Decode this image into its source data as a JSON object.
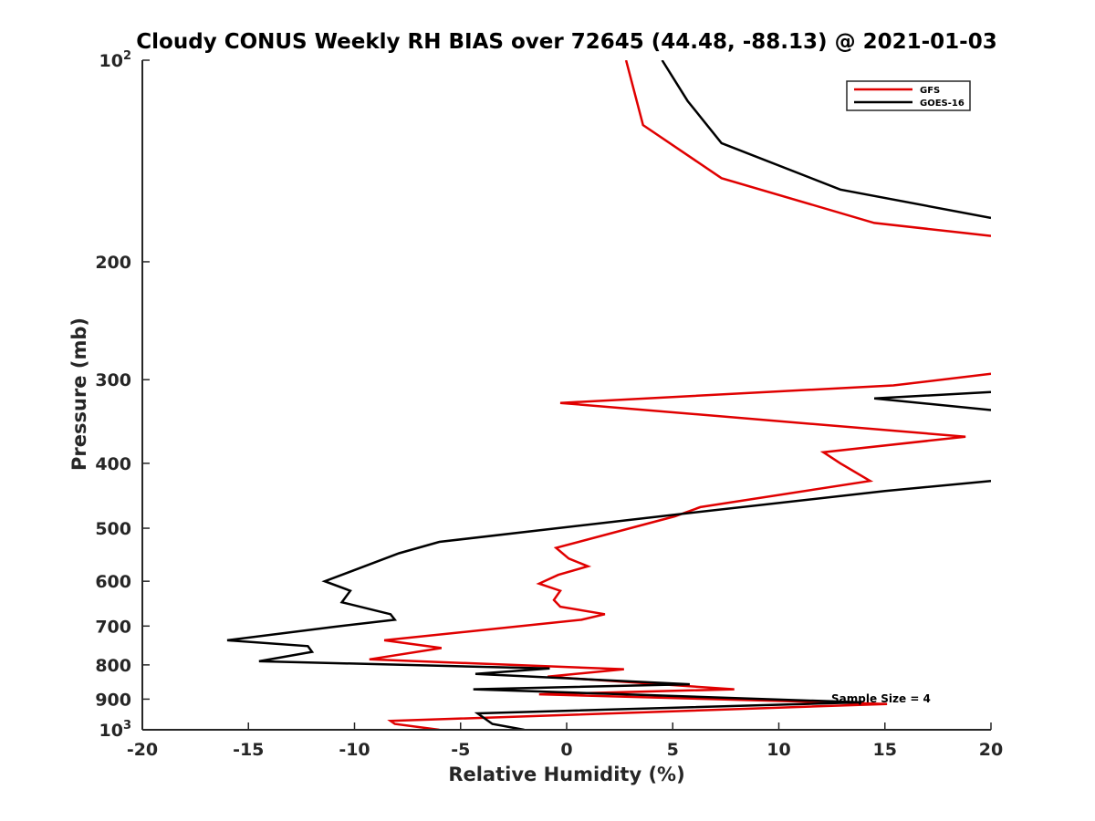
{
  "chart_data": {
    "type": "line",
    "title": "Cloudy CONUS Weekly RH BIAS over 72645 (44.48, -88.13) @ 2021-01-03",
    "xlabel": "Relative Humidity (%)",
    "ylabel": "Pressure (mb)",
    "xlim": [
      -20,
      20
    ],
    "ylim": [
      100,
      1000
    ],
    "y_scale": "log",
    "y_reversed": true,
    "grid": false,
    "legend_position": "top-right",
    "x_ticks": [
      "-20",
      "-15",
      "-10",
      "-5",
      "0",
      "5",
      "10",
      "15",
      "20"
    ],
    "y_ticks": [
      {
        "value": 100,
        "base": "10",
        "exp": "2"
      },
      {
        "value": 200,
        "label": "200"
      },
      {
        "value": 300,
        "label": "300"
      },
      {
        "value": 400,
        "label": "400"
      },
      {
        "value": 500,
        "label": "500"
      },
      {
        "value": 600,
        "label": "600"
      },
      {
        "value": 700,
        "label": "700"
      },
      {
        "value": 800,
        "label": "800"
      },
      {
        "value": 900,
        "label": "900"
      },
      {
        "value": 1000,
        "base": "10",
        "exp": "3"
      }
    ],
    "annotation": "Sample Size = 4",
    "series": [
      {
        "name": "GFS",
        "color": "#e00000",
        "points": [
          [
            2.8,
            100
          ],
          [
            3.6,
            125
          ],
          [
            7.3,
            150
          ],
          [
            14.5,
            175
          ],
          [
            20,
            183
          ],
          [
            null,
            null
          ],
          [
            20,
            294
          ],
          [
            15.4,
            306
          ],
          [
            -0.3,
            325
          ],
          [
            18.8,
            365
          ],
          [
            12.1,
            385
          ],
          [
            12.9,
            400
          ],
          [
            14.3,
            425
          ],
          [
            6.3,
            465
          ],
          [
            5.1,
            480
          ],
          [
            -0.5,
            535
          ],
          [
            0.1,
            555
          ],
          [
            1.0,
            570
          ],
          [
            -0.4,
            587
          ],
          [
            -1.3,
            605
          ],
          [
            -0.3,
            620
          ],
          [
            -0.6,
            640
          ],
          [
            -0.3,
            655
          ],
          [
            1.8,
            672
          ],
          [
            0.7,
            685
          ],
          [
            -8.6,
            735
          ],
          [
            -5.9,
            755
          ],
          [
            -9.3,
            785
          ],
          [
            2.7,
            812
          ],
          [
            -0.9,
            833
          ],
          [
            7.9,
            870
          ],
          [
            -1.3,
            885
          ],
          [
            15.1,
            915
          ],
          [
            -8.3,
            970
          ],
          [
            -8.1,
            980
          ],
          [
            -6.0,
            1000
          ]
        ]
      },
      {
        "name": "GOES-16",
        "color": "#000000",
        "points": [
          [
            4.5,
            100
          ],
          [
            5.7,
            115
          ],
          [
            7.3,
            133
          ],
          [
            12.9,
            156
          ],
          [
            20,
            172
          ],
          [
            null,
            null
          ],
          [
            20,
            313
          ],
          [
            14.5,
            320
          ],
          [
            20,
            333
          ],
          [
            null,
            null
          ],
          [
            20,
            425
          ],
          [
            15,
            440
          ],
          [
            4.9,
            478
          ],
          [
            -6.0,
            524
          ],
          [
            -7.9,
            545
          ],
          [
            -11.4,
            600
          ],
          [
            -10.2,
            620
          ],
          [
            -10.6,
            645
          ],
          [
            -8.3,
            672
          ],
          [
            -8.1,
            685
          ],
          [
            -11.0,
            702
          ],
          [
            -16.0,
            735
          ],
          [
            -12.2,
            750
          ],
          [
            -12.0,
            765
          ],
          [
            -14.5,
            790
          ],
          [
            -0.8,
            810
          ],
          [
            -4.3,
            825
          ],
          [
            5.8,
            855
          ],
          [
            -4.4,
            870
          ],
          [
            13.9,
            910
          ],
          [
            -4.2,
            945
          ],
          [
            -3.8,
            965
          ],
          [
            -3.5,
            980
          ],
          [
            -2.0,
            1000
          ]
        ]
      }
    ]
  }
}
